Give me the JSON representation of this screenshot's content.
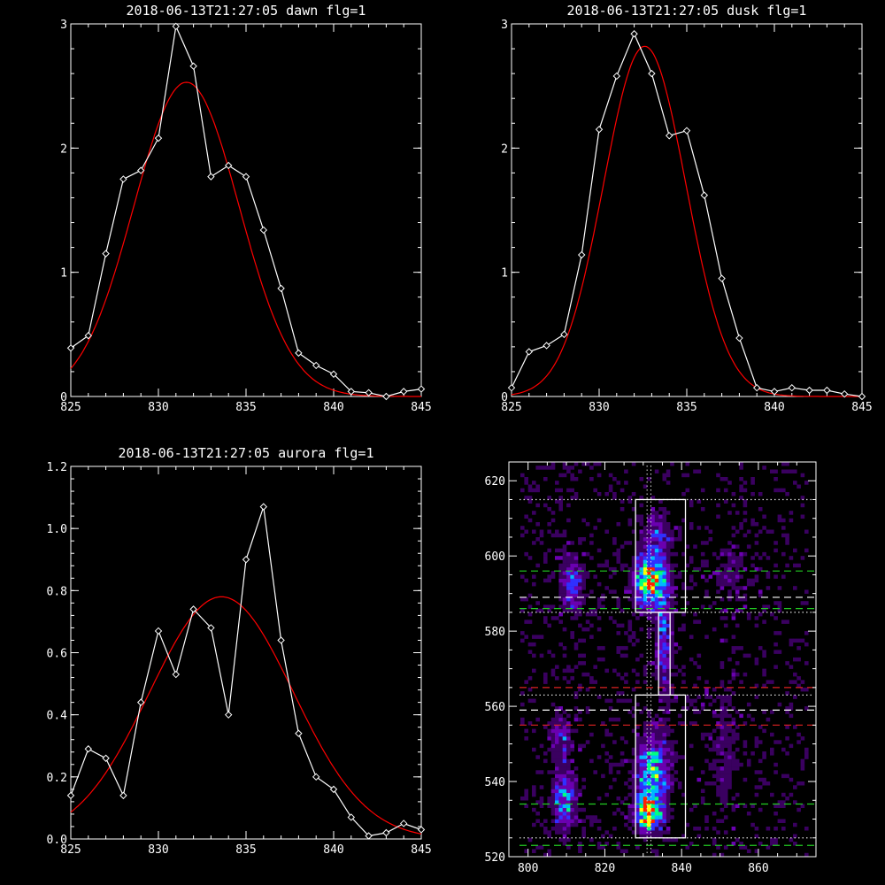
{
  "colors": {
    "background": "#000000",
    "axes": "#ffffff",
    "data_line": "#ffffff",
    "fit_line": "#ff0000",
    "box": "#ffffff",
    "guide_green": "#22cc22",
    "guide_red": "#dd2222",
    "guide_white": "#ffffff",
    "guide_dotted": "#dddddd"
  },
  "chart_data": [
    {
      "id": "dawn",
      "type": "line",
      "title": "2018-06-13T21:27:05 dawn flg=1",
      "xlim": [
        825,
        845
      ],
      "ylim": [
        0,
        3
      ],
      "xticks": [
        825,
        830,
        835,
        840,
        845
      ],
      "yticks": [
        0,
        1,
        2,
        3
      ],
      "series": [
        {
          "role": "data",
          "marker": "diamond",
          "x": [
            825,
            826,
            827,
            828,
            829,
            830,
            831,
            832,
            833,
            834,
            835,
            836,
            837,
            838,
            839,
            840,
            841,
            842,
            843,
            844,
            845
          ],
          "y": [
            0.39,
            0.49,
            1.15,
            1.75,
            1.82,
            2.08,
            2.98,
            2.66,
            1.77,
            1.86,
            1.77,
            1.34,
            0.87,
            0.35,
            0.25,
            0.18,
            0.04,
            0.03,
            0.0,
            0.04,
            0.06
          ]
        },
        {
          "role": "fit",
          "gauss": {
            "amp": 2.53,
            "center": 831.6,
            "sigma": 3.0
          }
        }
      ]
    },
    {
      "id": "dusk",
      "type": "line",
      "title": "2018-06-13T21:27:05 dusk flg=1",
      "xlim": [
        825,
        845
      ],
      "ylim": [
        0,
        3
      ],
      "xticks": [
        825,
        830,
        835,
        840,
        845
      ],
      "yticks": [
        0,
        1,
        2,
        3
      ],
      "series": [
        {
          "role": "data",
          "marker": "diamond",
          "x": [
            825,
            826,
            827,
            828,
            829,
            830,
            831,
            832,
            833,
            834,
            835,
            836,
            837,
            838,
            839,
            840,
            841,
            842,
            843,
            844,
            845
          ],
          "y": [
            0.07,
            0.36,
            0.41,
            0.5,
            1.14,
            2.15,
            2.58,
            2.92,
            2.6,
            2.1,
            2.14,
            1.62,
            0.95,
            0.47,
            0.07,
            0.04,
            0.07,
            0.05,
            0.05,
            0.02,
            0.0
          ]
        },
        {
          "role": "fit",
          "gauss": {
            "amp": 2.82,
            "center": 832.6,
            "sigma": 2.35
          }
        }
      ]
    },
    {
      "id": "aurora",
      "type": "line",
      "title": "2018-06-13T21:27:05 aurora flg=1",
      "xlim": [
        825,
        845
      ],
      "ylim": [
        0,
        1.2
      ],
      "xticks": [
        825,
        830,
        835,
        840,
        845
      ],
      "yticks": [
        0.0,
        0.2,
        0.4,
        0.6,
        0.8,
        1.0,
        1.2
      ],
      "ytick_labels": [
        "0.0",
        "0.2",
        "0.4",
        "0.6",
        "0.8",
        "1.0",
        "1.2"
      ],
      "series": [
        {
          "role": "data",
          "marker": "diamond",
          "x": [
            825,
            826,
            827,
            828,
            829,
            830,
            831,
            832,
            833,
            834,
            835,
            836,
            837,
            838,
            839,
            840,
            841,
            842,
            843,
            844,
            845
          ],
          "y": [
            0.14,
            0.29,
            0.26,
            0.14,
            0.44,
            0.67,
            0.53,
            0.74,
            0.68,
            0.4,
            0.9,
            1.07,
            0.64,
            0.34,
            0.2,
            0.16,
            0.07,
            0.01,
            0.02,
            0.05,
            0.03
          ]
        },
        {
          "role": "fit",
          "gauss": {
            "amp": 0.78,
            "center": 833.6,
            "sigma": 4.1
          }
        }
      ]
    },
    {
      "id": "spectrogram",
      "type": "heatmap",
      "title": "",
      "xlim": [
        795,
        875
      ],
      "ylim": [
        520,
        625
      ],
      "xticks": [
        800,
        820,
        840,
        860
      ],
      "yticks": [
        520,
        540,
        560,
        580,
        600,
        620
      ],
      "colormap": [
        "#000000",
        "#3a0060",
        "#6a00b0",
        "#3030ff",
        "#00b8ff",
        "#00ff80",
        "#ffff00",
        "#ff2000"
      ],
      "blobs": [
        {
          "x": 831,
          "y": 593,
          "sx": 2.6,
          "sy": 4.6,
          "amp": 1.0
        },
        {
          "x": 831,
          "y": 531,
          "sx": 2.4,
          "sy": 3.2,
          "amp": 0.95
        },
        {
          "x": 832,
          "y": 542,
          "sx": 3.0,
          "sy": 6.5,
          "amp": 0.65
        },
        {
          "x": 835,
          "y": 580,
          "sx": 1.5,
          "sy": 12.0,
          "amp": 0.4
        },
        {
          "x": 833,
          "y": 605,
          "sx": 2.5,
          "sy": 4.0,
          "amp": 0.35
        },
        {
          "x": 811,
          "y": 592,
          "sx": 2.0,
          "sy": 5.0,
          "amp": 0.45
        },
        {
          "x": 809,
          "y": 535,
          "sx": 2.2,
          "sy": 6.0,
          "amp": 0.5
        },
        {
          "x": 808,
          "y": 552,
          "sx": 2.0,
          "sy": 4.0,
          "amp": 0.3
        },
        {
          "x": 851,
          "y": 548,
          "sx": 3.5,
          "sy": 14.0,
          "amp": 0.14
        },
        {
          "x": 852,
          "y": 595,
          "sx": 3.5,
          "sy": 6.0,
          "amp": 0.15
        }
      ],
      "boxes": [
        {
          "x0": 828,
          "x1": 841,
          "y0": 585,
          "y1": 615
        },
        {
          "x0": 834,
          "x1": 837,
          "y0": 563,
          "y1": 585
        },
        {
          "x0": 828,
          "x1": 841,
          "y0": 525,
          "y1": 563
        }
      ],
      "hlines": [
        {
          "y": 615,
          "style": "dotted",
          "color": "guide_dotted"
        },
        {
          "y": 596,
          "style": "dashed",
          "color": "guide_green"
        },
        {
          "y": 589,
          "style": "dashed",
          "color": "guide_white"
        },
        {
          "y": 586,
          "style": "dashed",
          "color": "guide_green"
        },
        {
          "y": 585,
          "style": "dotted",
          "color": "guide_dotted"
        },
        {
          "y": 565,
          "style": "dashed",
          "color": "guide_red"
        },
        {
          "y": 563,
          "style": "dotted",
          "color": "guide_dotted"
        },
        {
          "y": 559,
          "style": "dashed",
          "color": "guide_white"
        },
        {
          "y": 555,
          "style": "dashed",
          "color": "guide_red"
        },
        {
          "y": 534,
          "style": "dashed",
          "color": "guide_green"
        },
        {
          "y": 525,
          "style": "dotted",
          "color": "guide_dotted"
        },
        {
          "y": 523,
          "style": "dashed",
          "color": "guide_green"
        }
      ],
      "vlines": [
        {
          "x": 831,
          "style": "dotted",
          "color": "guide_dotted"
        },
        {
          "x": 832,
          "style": "dotted",
          "color": "guide_dotted"
        }
      ]
    }
  ]
}
